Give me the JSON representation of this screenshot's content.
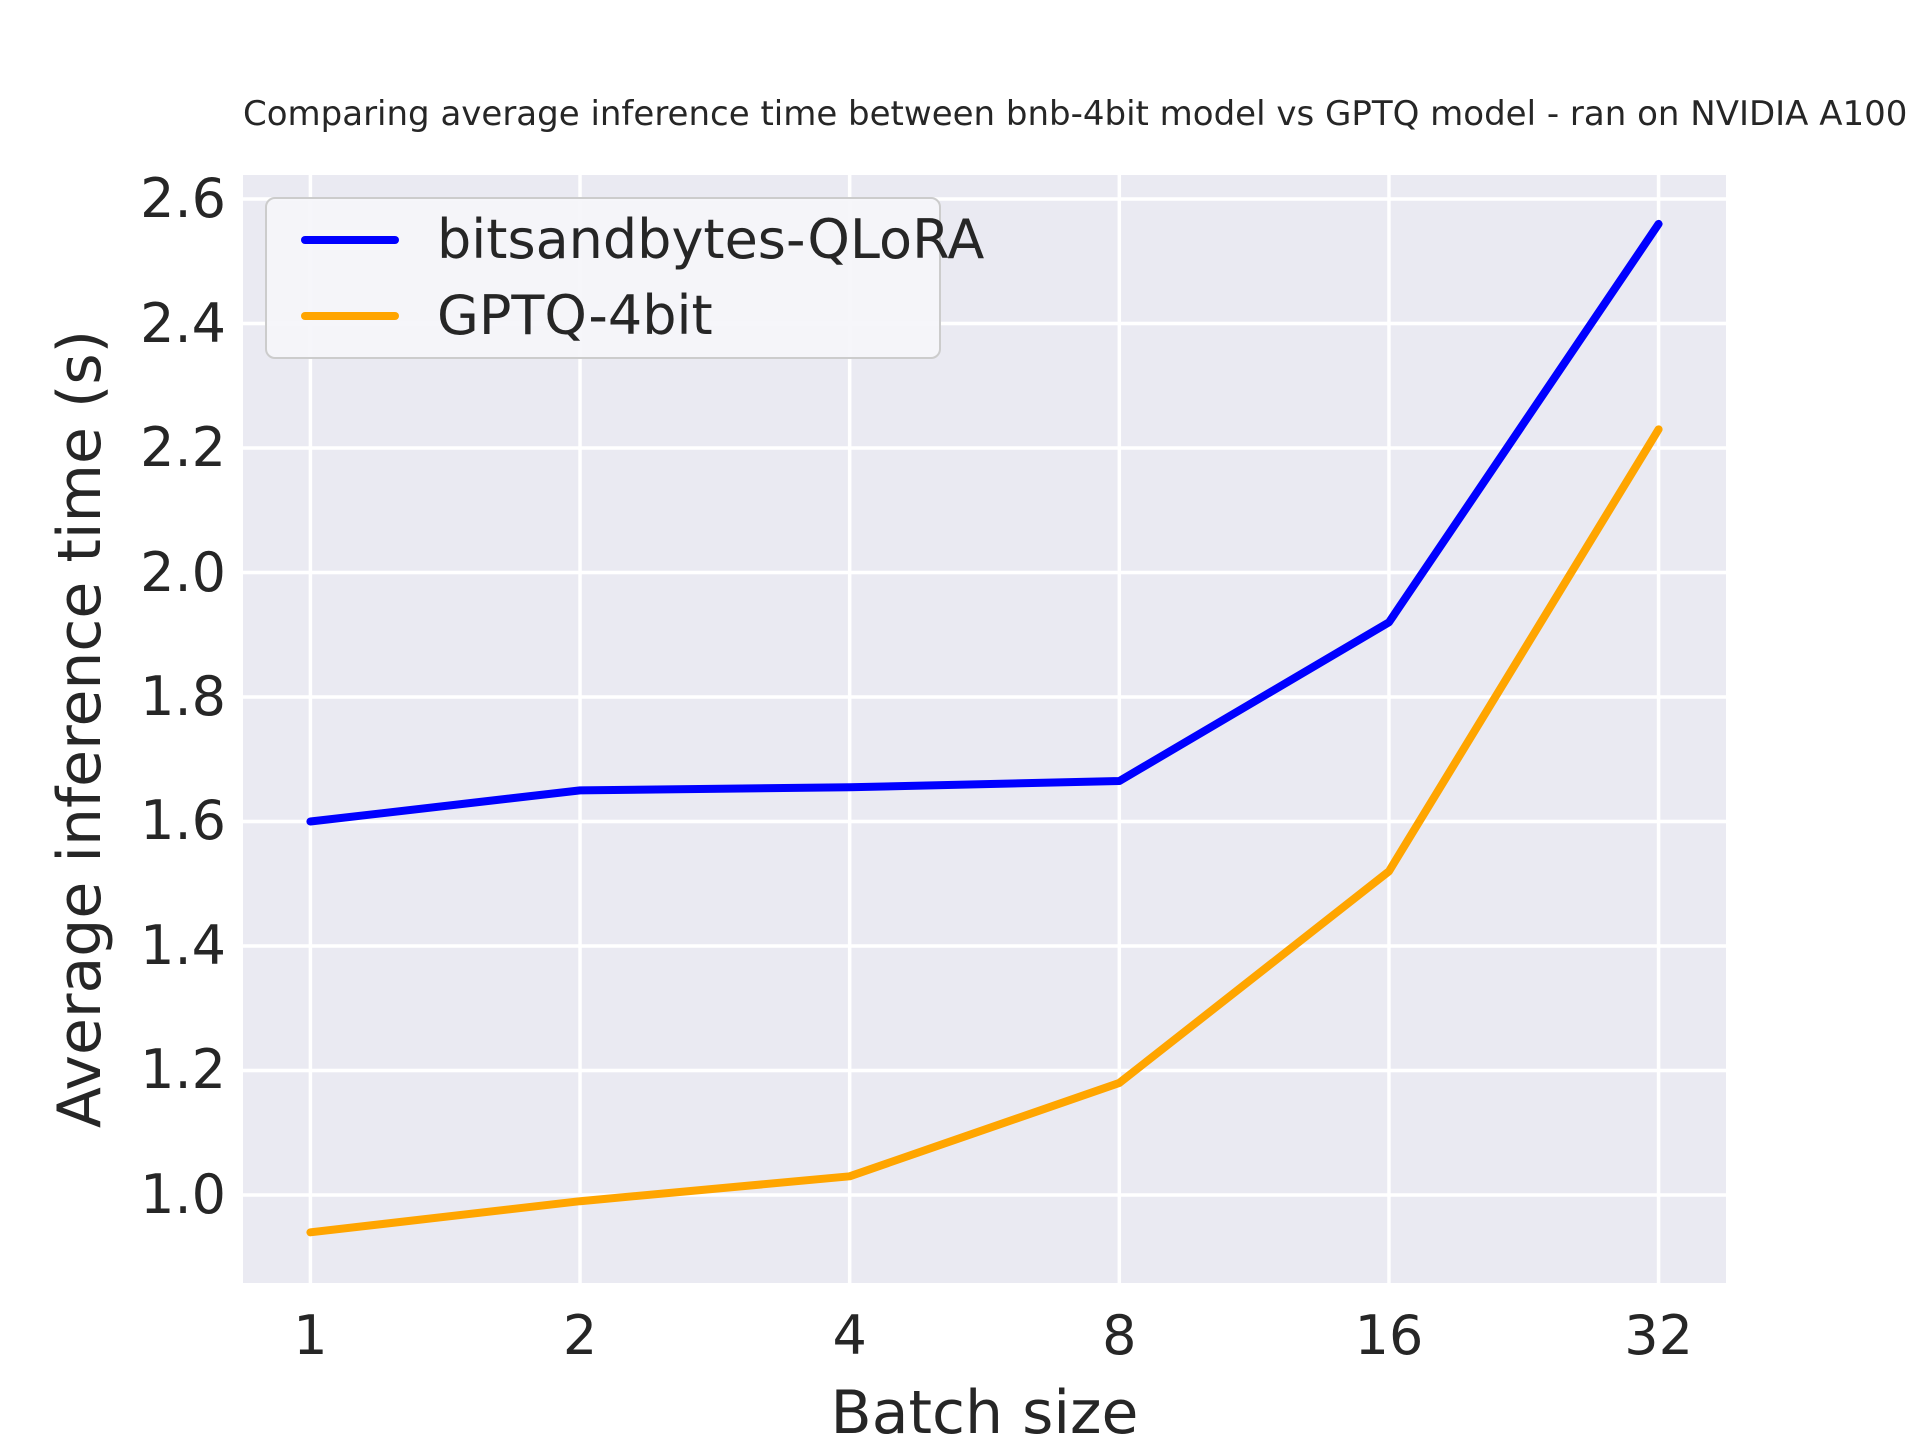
{
  "chart_data": {
    "type": "line",
    "title": "Comparing average inference time between bnb-4bit model vs GPTQ model - ran on NVIDIA A100",
    "xlabel": "Batch size",
    "ylabel": "Average inference time (s)",
    "x_scale": "log2",
    "categories": [
      1,
      2,
      4,
      8,
      16,
      32
    ],
    "x_tick_labels": [
      "1",
      "2",
      "4",
      "8",
      "16",
      "32"
    ],
    "y_ticks": [
      1.0,
      1.2,
      1.4,
      1.6,
      1.8,
      2.0,
      2.2,
      2.4,
      2.6
    ],
    "y_tick_labels": [
      "1.0",
      "1.2",
      "1.4",
      "1.6",
      "1.8",
      "2.0",
      "2.2",
      "2.4",
      "2.6"
    ],
    "ylim": [
      0.8586,
      2.6386
    ],
    "xlim_log2": [
      -0.25,
      5.25
    ],
    "grid": true,
    "legend_position": "upper left",
    "series": [
      {
        "name": "bitsandbytes-QLoRA",
        "color": "#0000ff",
        "values": [
          1.6,
          1.65,
          1.655,
          1.665,
          1.92,
          2.56
        ]
      },
      {
        "name": "GPTQ-4bit",
        "color": "#ffa500",
        "values": [
          0.94,
          0.99,
          1.03,
          1.18,
          1.52,
          2.23
        ]
      }
    ],
    "colors": {
      "figure_background": "#ffffff",
      "plot_background": "#eaeaf2",
      "grid": "#ffffff",
      "text": "#262626",
      "legend_border": "#cccccc"
    }
  }
}
